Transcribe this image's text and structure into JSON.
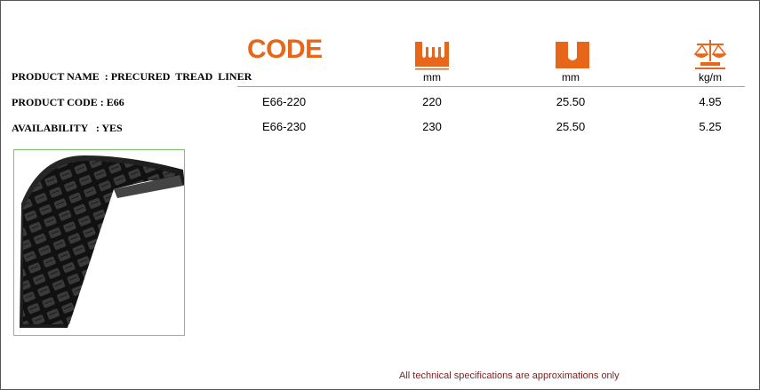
{
  "header": {
    "code_title": "CODE",
    "columns": [
      {
        "icon": "tread-width-icon",
        "unit": "mm"
      },
      {
        "icon": "tread-depth-icon",
        "unit": "mm"
      },
      {
        "icon": "weight-scale-icon",
        "unit": "kg/m"
      }
    ]
  },
  "product": {
    "name_line": "PRODUCT NAME  : PRECURED  TREAD  LINER",
    "code_line": "PRODUCT CODE : E66",
    "availability_line": "AVAILABILITY   : YES"
  },
  "rows": [
    {
      "code": "E66-220",
      "width": "220",
      "depth": "25.50",
      "weight": "4.95"
    },
    {
      "code": "E66-230",
      "width": "230",
      "depth": "25.50",
      "weight": "5.25"
    }
  ],
  "image": {
    "icon": "tread-liner-photo"
  },
  "colors": {
    "accent": "#e8661a",
    "rule": "#9bb55a",
    "photo_border": "#7cc36a",
    "footnote": "#7a1f1f"
  },
  "footnote": "All technical specifications are approximations only"
}
